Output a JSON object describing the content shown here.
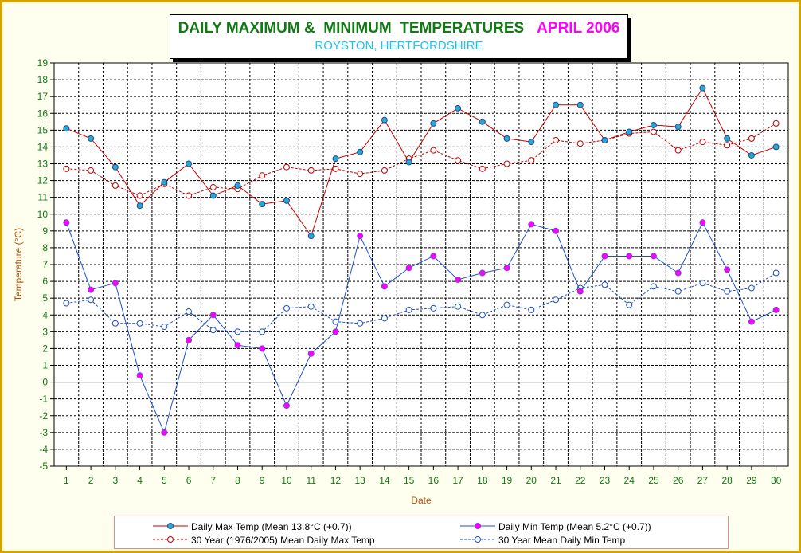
{
  "title": {
    "main": "DAILY MAXIMUM &  MINIMUM  TEMPERATURES",
    "month": "APRIL 2006",
    "subtitle": "ROYSTON, HERTFORDSHIRE"
  },
  "chart_data": {
    "type": "line",
    "title": "DAILY MAXIMUM &  MINIMUM  TEMPERATURES    APRIL 2006",
    "subtitle": "ROYSTON, HERTFORDSHIRE",
    "xlabel": "Date",
    "ylabel": "Temperature (°C)",
    "x": [
      1,
      2,
      3,
      4,
      5,
      6,
      7,
      8,
      9,
      10,
      11,
      12,
      13,
      14,
      15,
      16,
      17,
      18,
      19,
      20,
      21,
      22,
      23,
      24,
      25,
      26,
      27,
      28,
      29,
      30
    ],
    "ylim": [
      -5,
      19
    ],
    "yticks": [
      -5,
      -4,
      -3,
      -2,
      -1,
      0,
      1,
      2,
      3,
      4,
      5,
      6,
      7,
      8,
      9,
      10,
      11,
      12,
      13,
      14,
      15,
      16,
      17,
      18,
      19
    ],
    "grid": true,
    "legend_position": "bottom",
    "series": [
      {
        "name": "Daily Max Temp (Mean 13.8°C (+0.7))",
        "color": "#c00000",
        "marker": "filled-blue",
        "dash": "solid",
        "values": [
          15.1,
          14.5,
          12.8,
          10.5,
          11.9,
          13.0,
          11.1,
          11.7,
          10.6,
          10.8,
          8.7,
          13.3,
          13.7,
          15.6,
          13.1,
          15.4,
          16.3,
          15.5,
          14.5,
          14.3,
          16.5,
          16.5,
          14.4,
          14.9,
          15.3,
          15.2,
          17.5,
          14.5,
          13.5,
          14.0
        ]
      },
      {
        "name": "30 Year (1976/2005) Mean Daily Max Temp",
        "color": "#c00000",
        "marker": "open-red",
        "dash": "dashed",
        "values": [
          12.7,
          12.6,
          11.7,
          11.1,
          11.8,
          11.1,
          11.6,
          11.5,
          12.3,
          12.8,
          12.6,
          12.7,
          12.4,
          12.6,
          13.3,
          13.8,
          13.2,
          12.7,
          13.0,
          13.2,
          14.4,
          14.2,
          14.4,
          14.8,
          14.9,
          13.8,
          14.3,
          14.1,
          14.5,
          15.4
        ]
      },
      {
        "name": "Daily Min Temp (Mean 5.2°C (+0.7))",
        "color": "#1f4fc8",
        "marker": "filled-magenta",
        "dash": "solid",
        "values": [
          9.5,
          5.5,
          5.9,
          0.4,
          -3.0,
          2.5,
          4.0,
          2.2,
          2.0,
          -1.4,
          1.7,
          3.0,
          8.7,
          5.7,
          6.8,
          7.5,
          6.1,
          6.5,
          6.8,
          9.4,
          9.0,
          5.4,
          7.5,
          7.5,
          7.5,
          6.5,
          9.5,
          6.7,
          3.6,
          4.3
        ]
      },
      {
        "name": "30 Year Mean Daily Min Temp",
        "color": "#1f4fc8",
        "marker": "open-blue",
        "dash": "dashed",
        "values": [
          4.7,
          4.9,
          3.5,
          3.5,
          3.3,
          4.2,
          3.1,
          3.0,
          3.0,
          4.4,
          4.5,
          3.6,
          3.5,
          3.8,
          4.3,
          4.4,
          4.5,
          4.0,
          4.6,
          4.3,
          4.9,
          5.6,
          5.8,
          4.6,
          5.7,
          5.4,
          5.9,
          5.4,
          5.6,
          6.5
        ]
      }
    ]
  }
}
